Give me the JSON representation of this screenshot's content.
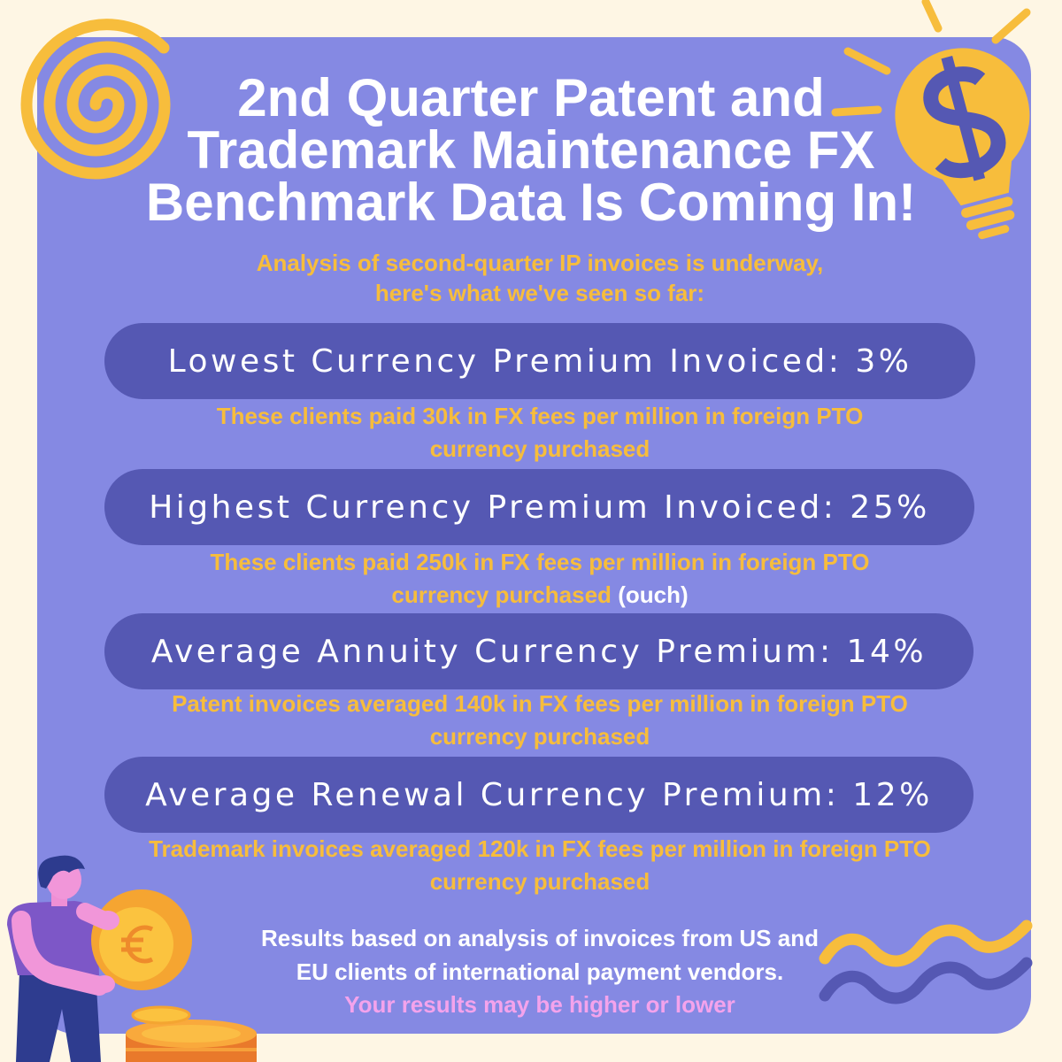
{
  "colors": {
    "background": "#fef6e4",
    "panel": "#8589e3",
    "pill": "#5558b3",
    "accent_yellow": "#f7bd3c",
    "text_white": "#ffffff",
    "note_pink": "#f4a3ec"
  },
  "header": {
    "title_lines": [
      "2nd Quarter Patent and",
      "Trademark Maintenance FX",
      "Benchmark Data Is Coming In!"
    ],
    "subtitle_lines": [
      "Analysis of second-quarter IP invoices is underway,",
      "here's what we've seen so far:"
    ]
  },
  "stats": [
    {
      "label": "Lowest Currency Premium Invoiced: 3%",
      "detail_lines": [
        "These clients paid 30k in FX fees per million in foreign PTO",
        "currency purchased"
      ]
    },
    {
      "label": "Highest Currency Premium Invoiced: 25%",
      "detail_lines": [
        "These clients paid 250k in FX fees per million in foreign PTO",
        "currency purchased"
      ],
      "detail_aside": "(ouch)"
    },
    {
      "label": "Average Annuity Currency Premium: 14%",
      "detail_lines": [
        "Patent invoices averaged 140k in FX fees per million in foreign PTO",
        "currency purchased"
      ]
    },
    {
      "label": "Average Renewal Currency Premium: 12%",
      "detail_lines": [
        "Trademark invoices averaged 120k in FX fees per million in foreign PTO",
        "currency purchased"
      ]
    }
  ],
  "footer": {
    "lines": [
      "Results based on analysis of invoices from US and",
      "EU clients of international payment vendors."
    ],
    "note": "Your results may be higher or lower"
  },
  "icons": {
    "top_left": "spiral-decoration",
    "top_right": "dollar-lightbulb-icon",
    "bottom_left": "person-with-euro-coin-illustration",
    "bottom_right": "wave-decoration"
  }
}
